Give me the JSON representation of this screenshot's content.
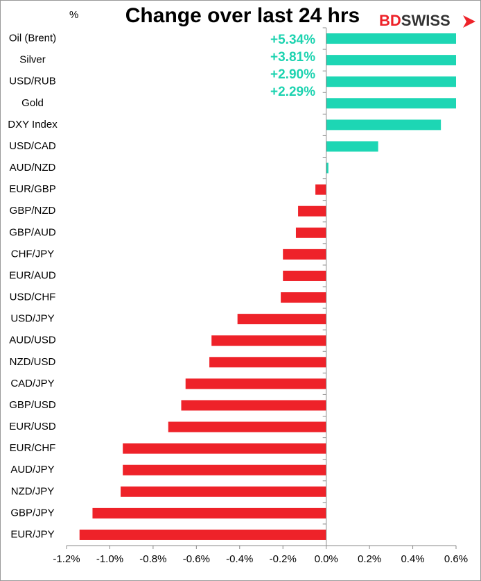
{
  "chart_data": {
    "type": "bar",
    "orientation": "horizontal",
    "title": "Change over last 24 hrs",
    "unit_label": "%",
    "logo": {
      "first": "BD",
      "second": "SWISS"
    },
    "categories": [
      "Oil (Brent)",
      "Silver",
      "USD/RUB",
      "Gold",
      "DXY Index",
      "USD/CAD",
      "AUD/NZD",
      "EUR/GBP",
      "GBP/NZD",
      "GBP/AUD",
      "CHF/JPY",
      "EUR/AUD",
      "USD/CHF",
      "USD/JPY",
      "AUD/USD",
      "NZD/USD",
      "CAD/JPY",
      "GBP/USD",
      "EUR/USD",
      "EUR/CHF",
      "AUD/JPY",
      "NZD/JPY",
      "GBP/JPY",
      "EUR/JPY"
    ],
    "values": [
      5.34,
      3.81,
      2.9,
      2.29,
      0.53,
      0.24,
      0.01,
      -0.05,
      -0.13,
      -0.14,
      -0.2,
      -0.2,
      -0.21,
      -0.41,
      -0.53,
      -0.54,
      -0.65,
      -0.67,
      -0.73,
      -0.94,
      -0.94,
      -0.95,
      -1.08,
      -1.14
    ],
    "value_labels": [
      "+5.34%",
      "+3.81%",
      "+2.90%",
      "+2.29%",
      null,
      null,
      null,
      null,
      null,
      null,
      null,
      null,
      null,
      null,
      null,
      null,
      null,
      null,
      null,
      null,
      null,
      null,
      null,
      null
    ],
    "positive_color": "#1dd6b4",
    "negative_color": "#ee2229",
    "xlim": [
      -1.2,
      0.6
    ],
    "xticks": [
      {
        "value": -1.2,
        "label": "-1.2%"
      },
      {
        "value": -1.0,
        "label": "-1.0%"
      },
      {
        "value": -0.8,
        "label": "-0.8%"
      },
      {
        "value": -0.6,
        "label": "-0.6%"
      },
      {
        "value": -0.4,
        "label": "-0.4%"
      },
      {
        "value": -0.2,
        "label": "-0.2%"
      },
      {
        "value": 0,
        "label": "0.0%"
      },
      {
        "value": 0.2,
        "label": "0.2%"
      },
      {
        "value": 0.4,
        "label": "0.4%"
      },
      {
        "value": 0.6,
        "label": "0.6%"
      }
    ],
    "grid": false
  }
}
